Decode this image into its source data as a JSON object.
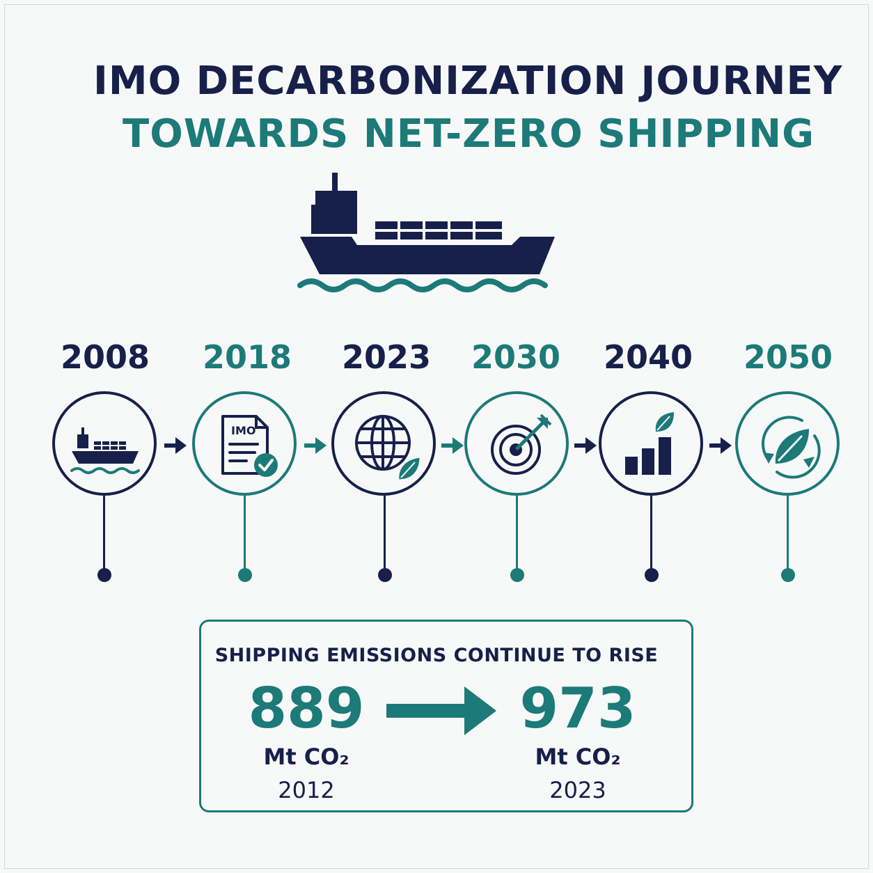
{
  "title": {
    "line1": "IMO DECARBONIZATION JOURNEY",
    "line2": "TOWARDS NET-ZERO SHIPPING"
  },
  "hero_icon": "container-ship-on-waves-icon",
  "timeline": [
    {
      "year": "2008",
      "icon": "ship-icon",
      "color": "#16204a"
    },
    {
      "year": "2018",
      "icon": "imo-document-check-icon",
      "icon_text": "IMO",
      "color": "#1c7a78"
    },
    {
      "year": "2023",
      "icon": "globe-leaf-icon",
      "color": "#16204a"
    },
    {
      "year": "2030",
      "icon": "target-arrow-icon",
      "color": "#1c7a78"
    },
    {
      "year": "2040",
      "icon": "bar-chart-leaf-icon",
      "color": "#16204a"
    },
    {
      "year": "2050",
      "icon": "leaf-cycle-icon",
      "color": "#1c7a78"
    }
  ],
  "emissions": {
    "title": "SHIPPING EMISSIONS CONTINUE TO RISE",
    "from": {
      "value": "889",
      "unit": "Mt CO₂",
      "year": "2012"
    },
    "to": {
      "value": "973",
      "unit": "Mt CO₂",
      "year": "2023"
    }
  },
  "colors": {
    "navy": "#16204a",
    "teal": "#1c7a78",
    "background": "#f7f8f8"
  }
}
